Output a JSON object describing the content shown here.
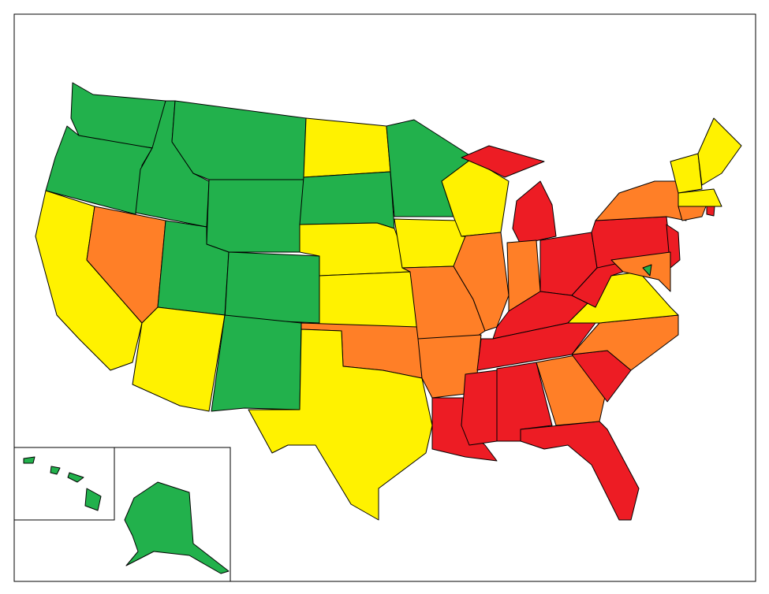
{
  "map": {
    "regions": [
      "#22b14c",
      "#22b14c",
      "#fff200",
      "#ff7f27",
      "#22b14c",
      "#22b14c",
      "#22b14c",
      "#22b14c",
      "#22b14c",
      "#fff200",
      "#22b14c",
      "#fff200",
      "#22b14c",
      "#fff200",
      "#fff200",
      "#ff7f27",
      "#fff200",
      "#22b14c",
      "#fff200",
      "#ff7f27",
      "#ff7f27",
      "#ed1c24",
      "#fff200",
      "#ff7f27",
      "#ed1c24",
      "#ed1c24",
      "#ff7f27",
      "#ed1c24",
      "#ed1c24",
      "#ed1c24",
      "#ed1c24",
      "#ed1c24",
      "#ff7f27",
      "#ed1c24",
      "#ed1c24",
      "#ff7f27",
      "#fff200",
      "#ed1c24",
      "#ed1c24",
      "#ff7f27",
      "#ed1c24",
      "#ff7f27",
      "#22b14c",
      "#fff200",
      "#fff200",
      "#fff200",
      "#ff7f27",
      "#ed1c24",
      "#22b14c",
      "#22b14c",
      "#22b14c",
      "#22b14c",
      "#22b14c"
    ]
  }
}
